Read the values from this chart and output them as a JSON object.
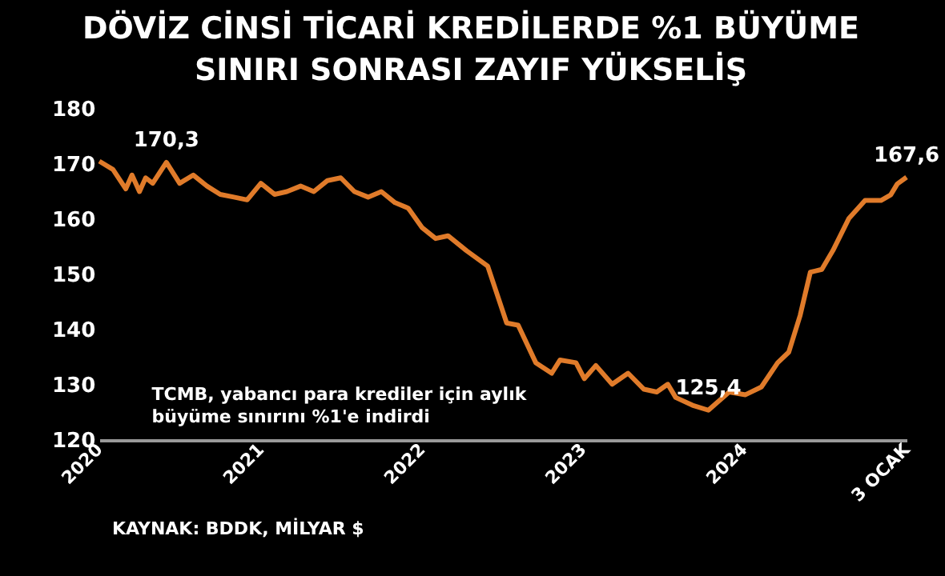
{
  "chart_data": {
    "type": "line",
    "title": "DÖVİZ CİNSİ TİCARİ KREDİLERDE %1 BÜYÜME\nSINIRI SONRASI ZAYIF YÜKSELİŞ",
    "x": [
      "2020-01-01",
      "2020-02-01",
      "2020-03-01",
      "2020-03-15",
      "2020-04-01",
      "2020-04-15",
      "2020-05-01",
      "2020-06-01",
      "2020-07-01",
      "2020-08-01",
      "2020-09-01",
      "2020-10-01",
      "2020-11-01",
      "2020-12-01",
      "2021-01-01",
      "2021-02-01",
      "2021-03-01",
      "2021-04-01",
      "2021-05-01",
      "2021-06-01",
      "2021-07-01",
      "2021-08-01",
      "2021-09-01",
      "2021-10-01",
      "2021-11-01",
      "2021-12-01",
      "2022-01-01",
      "2022-02-01",
      "2022-03-01",
      "2022-04-12",
      "2022-05-30",
      "2022-07-12",
      "2022-08-07",
      "2022-09-16",
      "2022-10-22",
      "2022-11-10",
      "2022-12-16",
      "2023-01-04",
      "2023-01-30",
      "2023-03-08",
      "2023-04-13",
      "2023-05-19",
      "2023-06-17",
      "2023-07-12",
      "2023-07-30",
      "2023-09-06",
      "2023-10-12",
      "2023-11-28",
      "2024-01-04",
      "2024-02-09",
      "2024-03-17",
      "2024-04-11",
      "2024-05-07",
      "2024-05-30",
      "2024-06-25",
      "2024-07-20",
      "2024-08-25",
      "2024-10-01",
      "2024-11-06",
      "2024-11-28",
      "2024-12-13",
      "2025-01-03"
    ],
    "series": [
      {
        "color": "#e07b2a",
        "values": [
          170.5,
          169,
          165.5,
          168,
          165,
          167.5,
          166.5,
          170.3,
          166.5,
          168,
          166,
          164.5,
          164,
          163.5,
          166.5,
          164.5,
          165,
          166,
          165,
          167,
          167.5,
          165,
          164,
          165,
          163,
          162,
          158.5,
          156.5,
          157,
          154.3,
          151.5,
          141.2,
          140.8,
          134,
          132.1,
          134.5,
          134,
          131.1,
          133.5,
          130.1,
          132.1,
          129.2,
          128.7,
          130.1,
          127.7,
          126.3,
          125.4,
          128.7,
          128.2,
          129.6,
          134,
          135.9,
          142.6,
          150.4,
          150.9,
          154.3,
          160.1,
          163.4,
          163.4,
          164.4,
          166.4,
          167.6
        ]
      }
    ],
    "xlim": [
      "2020-01-01",
      "2025-01-03"
    ],
    "xticks": [
      {
        "value": "2020-01-01",
        "label": "2020"
      },
      {
        "value": "2021-01-01",
        "label": "2021"
      },
      {
        "value": "2022-01-01",
        "label": "2022"
      },
      {
        "value": "2023-01-01",
        "label": "2023"
      },
      {
        "value": "2024-01-01",
        "label": "2024"
      },
      {
        "value": "2025-01-03",
        "label": "3 OCAK"
      }
    ],
    "ylim": [
      120,
      180
    ],
    "yticks": [
      120,
      130,
      140,
      150,
      160,
      170,
      180
    ],
    "grid": false,
    "legend": false,
    "annotations": [
      {
        "text": "170,3",
        "x": "2020-06-01",
        "y": 170.3
      },
      {
        "text": "125,4",
        "x": "2023-10-12",
        "y": 125.4
      },
      {
        "text": "167,6",
        "x": "2025-01-03",
        "y": 167.6
      },
      "TCMB, yabancı para krediler için aylık\nbüyüme sınırını %1'e indirdi",
      "KAYNAK: BDDK, MİLYAR $"
    ]
  }
}
